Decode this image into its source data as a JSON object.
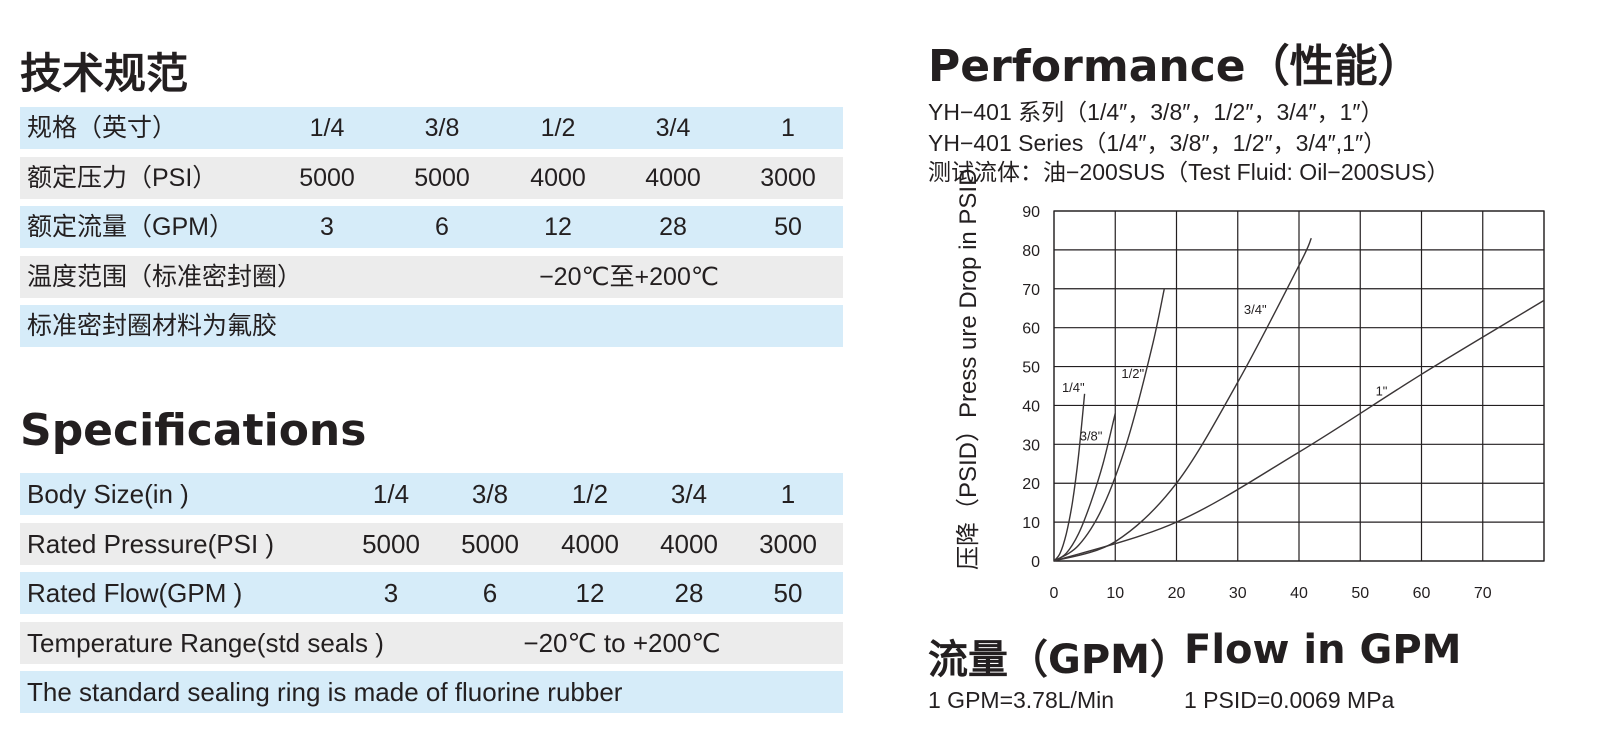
{
  "specs_cn": {
    "title": "技术规范",
    "rows": [
      {
        "label": "规格（英寸）",
        "values": [
          "1/4",
          "3/8",
          "1/2",
          "3/4",
          "1"
        ]
      },
      {
        "label": "额定压力（PSI）",
        "values": [
          "5000",
          "5000",
          "4000",
          "4000",
          "3000"
        ]
      },
      {
        "label": "额定流量（GPM）",
        "values": [
          "3",
          "6",
          "12",
          "28",
          "50"
        ]
      },
      {
        "label": "温度范围（标准密封圈）",
        "span_value": "−20℃至+200℃"
      },
      {
        "label": "标准密封圈材料为氟胶"
      }
    ]
  },
  "specs_en": {
    "title": "Specifications",
    "rows": [
      {
        "label": "Body Size(in )",
        "values": [
          "1/4",
          "3/8",
          "1/2",
          "3/4",
          "1"
        ]
      },
      {
        "label": "Rated Pressure(PSI )",
        "values": [
          "5000",
          "5000",
          "4000",
          "4000",
          "3000"
        ]
      },
      {
        "label": "Rated Flow(GPM )",
        "values": [
          "3",
          "6",
          "12",
          "28",
          "50"
        ]
      },
      {
        "label": "Temperature Range(std seals )",
        "span_value": "−20℃ to +200℃"
      },
      {
        "label": " The standard sealing ring is made of fluorine rubber"
      }
    ]
  },
  "performance": {
    "title": "Performance（性能）",
    "line1": "YH−401 系列（1/4″，3/8″，1/2″，3/4″，1″）",
    "line2": "YH−401 Series（1/4″，3/8″，1/2″，3/4″,1″）",
    "line3": "测试流体：油−200SUS（Test Fluid: Oil−200SUS）"
  },
  "chart_data": {
    "type": "line",
    "title": "",
    "xlabel": "流量（GPM）  Flow in GPM",
    "ylabel": "压降（PSID）Press ure Drop in PSID",
    "xlim": [
      0,
      80
    ],
    "ylim": [
      0,
      90
    ],
    "xticks": [
      0,
      10,
      20,
      30,
      40,
      50,
      60,
      70
    ],
    "yticks": [
      0,
      10,
      20,
      30,
      40,
      50,
      60,
      70,
      80,
      90
    ],
    "grid": true,
    "series": [
      {
        "name": "1/4\"",
        "x": [
          0,
          1,
          2,
          3,
          4,
          5
        ],
        "y": [
          0,
          2,
          7,
          15,
          27,
          43
        ]
      },
      {
        "name": "3/8\"",
        "x": [
          0,
          2,
          4,
          6,
          8,
          10
        ],
        "y": [
          0,
          2,
          7,
          15,
          25,
          38
        ]
      },
      {
        "name": "1/2\"",
        "x": [
          0,
          4,
          8,
          12,
          16,
          18
        ],
        "y": [
          0,
          4,
          14,
          31,
          55,
          70
        ]
      },
      {
        "name": "3/4\"",
        "x": [
          0,
          10,
          20,
          30,
          40,
          42
        ],
        "y": [
          0,
          5,
          20,
          46,
          76,
          83
        ]
      },
      {
        "name": "1\"",
        "x": [
          0,
          20,
          40,
          60,
          80
        ],
        "y": [
          0,
          10,
          28,
          48,
          67
        ]
      }
    ]
  },
  "flow_cn": "流量（GPM）",
  "flow_en": "Flow in GPM",
  "conv_gpm": "1 GPM=3.78L/Min",
  "conv_psid": "1 PSID=0.0069 MPa"
}
